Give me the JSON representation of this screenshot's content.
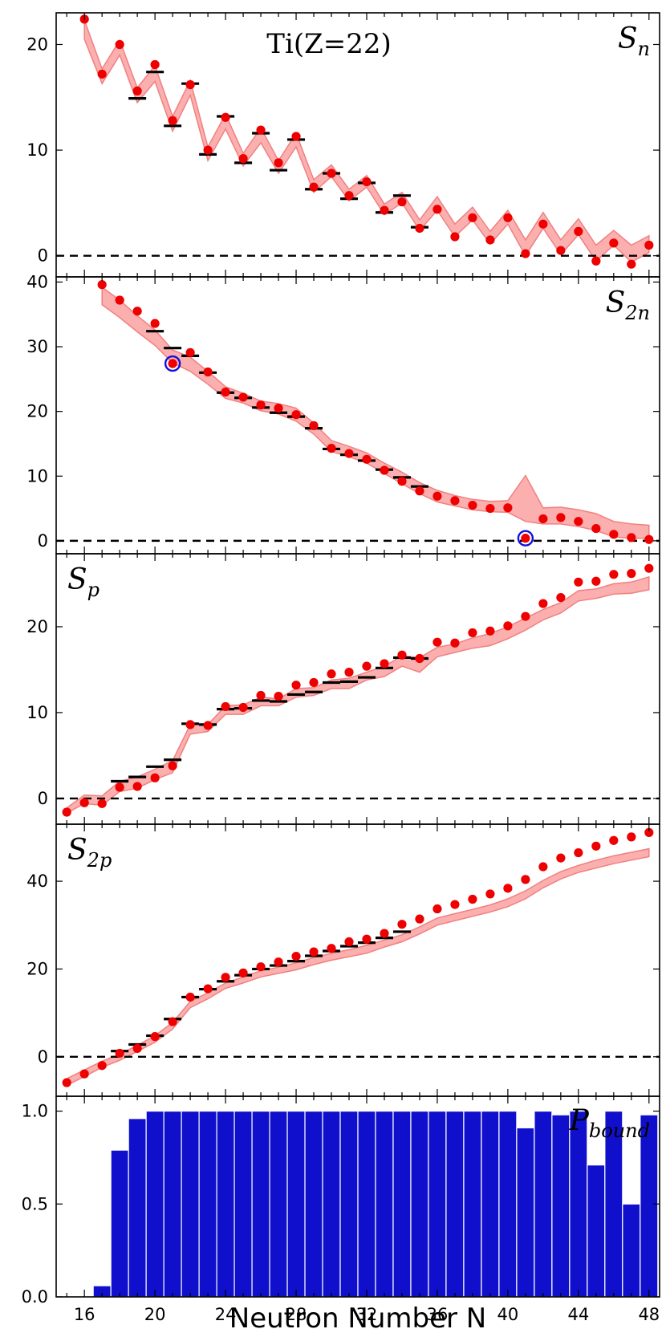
{
  "chart_data": {
    "type": "scatter",
    "title": "Ti(Z=22)",
    "xlabel": "Neutron Number N",
    "xlim": [
      14.4,
      48.6
    ],
    "x_ticks": [
      16,
      20,
      24,
      28,
      32,
      36,
      40,
      44,
      48
    ],
    "panels": [
      {
        "id": "Sn",
        "label": "S",
        "label_sub": "n",
        "label_pos": "top-right",
        "ylim": [
          -2,
          23
        ],
        "y_ticks": [
          0,
          10,
          20
        ],
        "zero_line": true,
        "band": {
          "x": [
            16,
            17,
            18,
            19,
            20,
            21,
            22,
            23,
            24,
            25,
            26,
            27,
            28,
            29,
            30,
            31,
            32,
            33,
            34,
            35,
            36,
            37,
            38,
            39,
            40,
            41,
            42,
            43,
            44,
            45,
            46,
            47,
            48
          ],
          "lower": [
            20.5,
            16.3,
            19.0,
            14.5,
            16.5,
            11.8,
            15.2,
            9.0,
            12.0,
            8.5,
            10.7,
            7.8,
            10.3,
            6.0,
            7.5,
            5.2,
            6.5,
            3.9,
            5.0,
            2.4,
            4.3,
            1.8,
            3.4,
            1.1,
            3.0,
            0.0,
            2.6,
            0.1,
            2.0,
            -0.5,
            1.0,
            -0.6,
            0.3
          ],
          "upper": [
            22.3,
            17.7,
            20.4,
            15.9,
            18.0,
            13.2,
            16.6,
            10.3,
            13.4,
            9.7,
            12.1,
            9.0,
            11.6,
            7.2,
            8.6,
            6.3,
            7.6,
            4.9,
            6.0,
            3.4,
            5.6,
            3.0,
            4.6,
            2.3,
            4.3,
            1.5,
            4.1,
            1.5,
            3.5,
            1.0,
            2.4,
            1.0,
            1.9
          ]
        },
        "predicted": {
          "x": [
            16,
            17,
            18,
            19,
            20,
            21,
            22,
            23,
            24,
            25,
            26,
            27,
            28,
            29,
            30,
            31,
            32,
            33,
            34,
            35,
            36,
            37,
            38,
            39,
            40,
            41,
            42,
            43,
            44,
            45,
            46,
            47,
            48
          ],
          "y": [
            22.4,
            17.2,
            20.0,
            15.6,
            18.1,
            12.8,
            16.2,
            10.0,
            13.1,
            9.2,
            11.9,
            8.8,
            11.3,
            6.5,
            7.8,
            5.7,
            7.0,
            4.3,
            5.1,
            2.6,
            4.4,
            1.8,
            3.6,
            1.5,
            3.6,
            0.2,
            3.0,
            0.5,
            2.3,
            -0.5,
            1.2,
            -0.8,
            1.0
          ]
        },
        "experimental": {
          "x": [
            19,
            20,
            21,
            22,
            23,
            24,
            25,
            26,
            27,
            28,
            29,
            30,
            31,
            32,
            33,
            34,
            35
          ],
          "y": [
            14.9,
            17.4,
            12.3,
            16.3,
            9.6,
            13.2,
            8.8,
            11.6,
            8.1,
            11.0,
            6.3,
            7.8,
            5.4,
            6.9,
            4.1,
            5.7,
            2.7
          ]
        },
        "highlighted": {
          "x": [],
          "y": []
        }
      },
      {
        "id": "S2n",
        "label": "S",
        "label_sub": "2n",
        "label_pos": "top-right",
        "ylim": [
          -2,
          40.8
        ],
        "y_ticks": [
          0,
          10,
          20,
          30,
          40
        ],
        "zero_line": true,
        "band": {
          "x": [
            17,
            18,
            19,
            20,
            21,
            22,
            23,
            24,
            25,
            26,
            27,
            28,
            29,
            30,
            31,
            32,
            33,
            34,
            35,
            36,
            37,
            38,
            39,
            40,
            41,
            42,
            43,
            44,
            45,
            46,
            47,
            48
          ],
          "lower": [
            36.5,
            34.5,
            32.3,
            30.2,
            27.5,
            26.2,
            24.2,
            22.0,
            21.3,
            20.1,
            19.6,
            18.5,
            16.5,
            13.8,
            13.0,
            12.0,
            10.4,
            8.8,
            7.3,
            6.0,
            5.4,
            4.8,
            4.5,
            4.4,
            3.0,
            2.6,
            2.6,
            2.2,
            1.6,
            0.6,
            0.4,
            0.4
          ],
          "upper": [
            39.2,
            37.2,
            34.8,
            32.6,
            29.5,
            28.4,
            26.2,
            23.8,
            22.8,
            21.6,
            21.2,
            20.5,
            18.2,
            15.5,
            14.6,
            13.6,
            12.0,
            10.6,
            9.0,
            7.8,
            7.0,
            6.4,
            6.1,
            6.2,
            10.1,
            5.1,
            5.2,
            4.8,
            4.2,
            3.0,
            2.6,
            2.4
          ]
        },
        "predicted": {
          "x": [
            17,
            18,
            19,
            20,
            21,
            22,
            23,
            24,
            25,
            26,
            27,
            28,
            29,
            30,
            31,
            32,
            33,
            34,
            35,
            36,
            37,
            38,
            39,
            40,
            41,
            42,
            43,
            44,
            45,
            46,
            47,
            48
          ],
          "y": [
            39.6,
            37.2,
            35.5,
            33.6,
            27.4,
            29.1,
            26.1,
            23.0,
            22.2,
            21.0,
            20.5,
            19.5,
            17.8,
            14.3,
            13.5,
            12.6,
            10.9,
            9.2,
            7.7,
            6.9,
            6.2,
            5.5,
            5.0,
            5.1,
            0.4,
            3.4,
            3.6,
            3.0,
            1.9,
            1.0,
            0.5,
            0.2
          ]
        },
        "experimental": {
          "x": [
            20,
            21,
            22,
            23,
            24,
            25,
            26,
            27,
            28,
            29,
            30,
            31,
            32,
            33,
            34,
            35
          ],
          "y": [
            32.4,
            29.8,
            28.6,
            26.0,
            22.9,
            22.1,
            20.6,
            19.8,
            19.2,
            17.4,
            14.2,
            13.3,
            12.4,
            11.0,
            9.8,
            8.4
          ]
        },
        "highlighted": {
          "x": [
            21,
            41
          ],
          "y": [
            27.4,
            0.4
          ]
        }
      },
      {
        "id": "Sp",
        "label": "S",
        "label_sub": "p",
        "label_pos": "top-left",
        "ylim": [
          -3,
          28.5
        ],
        "y_ticks": [
          0,
          10,
          20
        ],
        "zero_line": true,
        "band": {
          "x": [
            15,
            16,
            17,
            18,
            19,
            20,
            21,
            22,
            23,
            24,
            25,
            26,
            27,
            28,
            29,
            30,
            31,
            32,
            33,
            34,
            35,
            36,
            37,
            38,
            39,
            40,
            41,
            42,
            43,
            44,
            45,
            46,
            47,
            48
          ],
          "lower": [
            -1.7,
            -0.6,
            -0.8,
            0.8,
            1.2,
            2.2,
            3.0,
            7.5,
            7.8,
            9.8,
            9.8,
            10.8,
            10.8,
            11.8,
            12.0,
            12.8,
            12.8,
            13.8,
            14.2,
            15.4,
            14.7,
            16.5,
            17.0,
            17.5,
            17.8,
            18.6,
            19.6,
            20.8,
            21.6,
            23.0,
            23.3,
            23.8,
            23.9,
            24.3
          ],
          "upper": [
            -1.1,
            0.4,
            0.3,
            2.0,
            2.5,
            3.4,
            4.4,
            8.6,
            8.6,
            10.8,
            10.9,
            11.8,
            11.6,
            12.8,
            12.9,
            13.8,
            14.0,
            14.7,
            15.4,
            16.6,
            16.4,
            17.6,
            18.0,
            18.7,
            19.2,
            20.0,
            21.0,
            22.0,
            22.8,
            24.2,
            24.4,
            25.0,
            25.2,
            25.8
          ]
        },
        "predicted": {
          "x": [
            15,
            16,
            17,
            18,
            19,
            20,
            21,
            22,
            23,
            24,
            25,
            26,
            27,
            28,
            29,
            30,
            31,
            32,
            33,
            34,
            35,
            36,
            37,
            38,
            39,
            40,
            41,
            42,
            43,
            44,
            45,
            46,
            47,
            48
          ],
          "y": [
            -1.6,
            -0.5,
            -0.6,
            1.3,
            1.4,
            2.4,
            3.8,
            8.6,
            8.5,
            10.7,
            10.6,
            12.0,
            11.9,
            13.2,
            13.5,
            14.5,
            14.7,
            15.4,
            15.7,
            16.7,
            16.3,
            18.2,
            18.1,
            19.3,
            19.5,
            20.1,
            21.2,
            22.7,
            23.4,
            25.2,
            25.3,
            26.1,
            26.2,
            26.8
          ]
        },
        "experimental": {
          "x": [
            18,
            19,
            20,
            21,
            22,
            23,
            24,
            25,
            26,
            27,
            28,
            29,
            30,
            31,
            32,
            33,
            34,
            35
          ],
          "y": [
            2.0,
            2.5,
            3.7,
            4.5,
            8.7,
            8.6,
            10.4,
            10.5,
            11.4,
            11.3,
            12.1,
            12.4,
            13.5,
            13.6,
            14.1,
            15.2,
            16.4,
            16.3
          ]
        },
        "highlighted": {
          "x": [],
          "y": []
        }
      },
      {
        "id": "S2p",
        "label": "S",
        "label_sub": "2p",
        "label_pos": "top-left",
        "ylim": [
          -9,
          53
        ],
        "y_ticks": [
          0,
          20,
          40
        ],
        "zero_line": true,
        "band": {
          "x": [
            15,
            16,
            17,
            18,
            19,
            20,
            21,
            22,
            23,
            24,
            25,
            26,
            27,
            28,
            29,
            30,
            31,
            32,
            33,
            34,
            35,
            36,
            37,
            38,
            39,
            40,
            41,
            42,
            43,
            44,
            45,
            46,
            47,
            48
          ],
          "lower": [
            -6.5,
            -4.5,
            -2.4,
            -0.8,
            1.2,
            3.3,
            6.3,
            11.2,
            13.2,
            15.6,
            16.8,
            18.2,
            19.0,
            19.8,
            21.0,
            22.0,
            22.8,
            23.6,
            25.0,
            26.2,
            28.0,
            30.0,
            31.0,
            32.0,
            33.0,
            34.2,
            36.0,
            38.5,
            40.5,
            42.0,
            43.0,
            44.0,
            44.8,
            45.6
          ],
          "upper": [
            -5.0,
            -3.0,
            -1.0,
            0.6,
            2.6,
            4.8,
            7.8,
            12.6,
            14.6,
            16.8,
            18.2,
            19.6,
            20.4,
            21.4,
            22.6,
            23.6,
            24.4,
            25.4,
            26.6,
            27.8,
            29.6,
            31.6,
            32.6,
            33.6,
            34.6,
            36.0,
            37.8,
            40.2,
            42.2,
            43.6,
            44.8,
            45.8,
            46.6,
            47.4
          ]
        },
        "predicted": {
          "x": [
            15,
            16,
            17,
            18,
            19,
            20,
            21,
            22,
            23,
            24,
            25,
            26,
            27,
            28,
            29,
            30,
            31,
            32,
            33,
            34,
            35,
            36,
            37,
            38,
            39,
            40,
            41,
            42,
            43,
            44,
            45,
            46,
            47,
            48
          ],
          "y": [
            -5.9,
            -3.9,
            -2.0,
            0.8,
            1.9,
            4.6,
            8.0,
            13.6,
            15.5,
            18.1,
            19.1,
            20.5,
            21.6,
            22.9,
            23.9,
            24.7,
            26.2,
            26.8,
            28.1,
            30.2,
            31.4,
            33.7,
            34.7,
            35.9,
            37.1,
            38.4,
            40.4,
            43.3,
            45.3,
            46.5,
            48.0,
            49.3,
            50.1,
            51.1
          ]
        },
        "experimental": {
          "x": [
            18,
            19,
            20,
            21,
            22,
            23,
            24,
            25,
            26,
            27,
            28,
            29,
            30,
            31,
            32,
            33,
            34
          ],
          "y": [
            1.3,
            2.8,
            4.8,
            8.6,
            13.6,
            15.4,
            17.2,
            18.6,
            20.0,
            20.8,
            21.8,
            23.0,
            24.1,
            25.2,
            26.0,
            27.1,
            28.5
          ]
        },
        "highlighted": {
          "x": [],
          "y": []
        }
      },
      {
        "id": "Pbound",
        "type": "bar",
        "label": "P",
        "label_sub": "bound",
        "label_pos": "top-right",
        "ylim": [
          0,
          1.08
        ],
        "y_ticks": [
          0.0,
          0.5,
          1.0
        ],
        "y_tick_labels": [
          "0.0",
          "0.5",
          "1.0"
        ],
        "x": [
          15,
          16,
          17,
          18,
          19,
          20,
          21,
          22,
          23,
          24,
          25,
          26,
          27,
          28,
          29,
          30,
          31,
          32,
          33,
          34,
          35,
          36,
          37,
          38,
          39,
          40,
          41,
          42,
          43,
          44,
          45,
          46,
          47,
          48
        ],
        "values": [
          0.0,
          0.0,
          0.06,
          0.79,
          0.96,
          1.0,
          1.0,
          1.0,
          1.0,
          1.0,
          1.0,
          1.0,
          1.0,
          1.0,
          1.0,
          1.0,
          1.0,
          1.0,
          1.0,
          1.0,
          1.0,
          1.0,
          1.0,
          1.0,
          1.0,
          1.0,
          0.91,
          1.0,
          0.98,
          1.0,
          0.71,
          1.0,
          0.5,
          0.98
        ]
      }
    ]
  }
}
